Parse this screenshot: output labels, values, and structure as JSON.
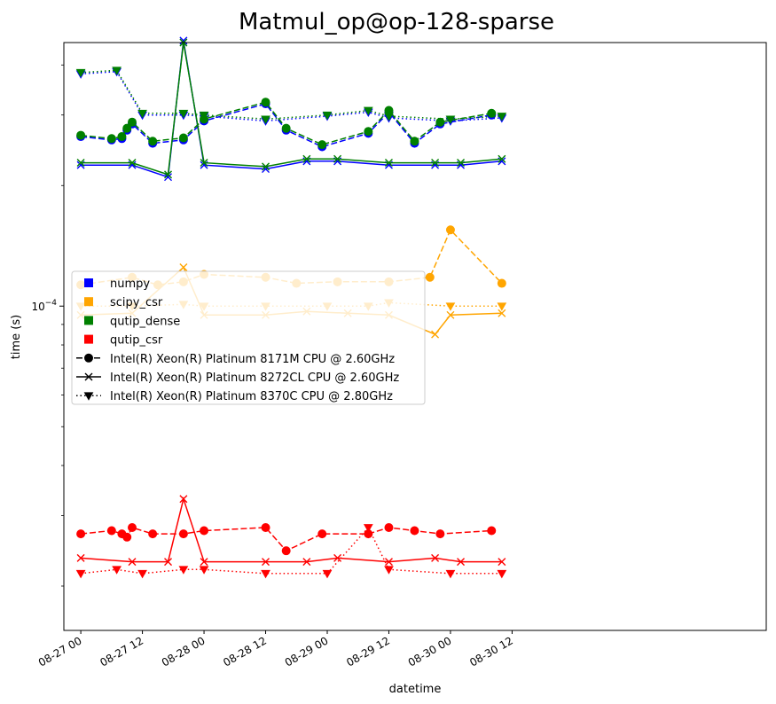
{
  "chart_data": {
    "type": "line",
    "title": "Matmul_op@op-128-sparse",
    "xlabel": "datetime",
    "ylabel": "time (s)",
    "yscale": "log",
    "xlim_hours": [
      -3.3,
      133.5
    ],
    "ylim": [
      1.55e-05,
      0.000455
    ],
    "x_ticks": [
      {
        "hour": 0,
        "label": "08-27 00"
      },
      {
        "hour": 12,
        "label": "08-27 12"
      },
      {
        "hour": 24,
        "label": "08-28 00"
      },
      {
        "hour": 36,
        "label": "08-28 12"
      },
      {
        "hour": 48,
        "label": "08-29 00"
      },
      {
        "hour": 60,
        "label": "08-29 12"
      },
      {
        "hour": 72,
        "label": "08-30 00"
      },
      {
        "hour": 84,
        "label": "08-30 12"
      }
    ],
    "y_tick_major": {
      "value": 0.0001,
      "base": "10",
      "exponent": "−4"
    },
    "legend": {
      "placement": "center-left",
      "operations": [
        {
          "name": "numpy",
          "color": "#0000ff"
        },
        {
          "name": "scipy_csr",
          "color": "#ffa500"
        },
        {
          "name": "qutip_dense",
          "color": "#008000"
        },
        {
          "name": "qutip_csr",
          "color": "#ff0000"
        }
      ],
      "cpus": [
        {
          "name": "Intel(R) Xeon(R) Platinum 8171M CPU @ 2.60GHz",
          "line": "dashed",
          "marker": "circle"
        },
        {
          "name": "Intel(R) Xeon(R) Platinum 8272CL CPU @ 2.60GHz",
          "line": "solid",
          "marker": "x"
        },
        {
          "name": "Intel(R) Xeon(R) Platinum 8370C CPU @ 2.80GHz",
          "line": "dotted",
          "marker": "triangle-down"
        }
      ]
    },
    "series": [
      {
        "op": "numpy",
        "cpu": 0,
        "color": "#0000ff",
        "x": [
          0,
          6,
          8,
          9,
          10,
          14,
          20,
          24,
          36,
          40,
          47,
          56,
          60,
          65,
          70,
          80
        ],
        "y": [
          0.000265,
          0.00026,
          0.000262,
          0.000275,
          0.000285,
          0.000255,
          0.00026,
          0.00029,
          0.00032,
          0.000275,
          0.00025,
          0.00027,
          0.000305,
          0.000255,
          0.000285,
          0.0003
        ]
      },
      {
        "op": "numpy",
        "cpu": 1,
        "color": "#0000ff",
        "x": [
          0,
          10,
          17,
          20,
          24,
          36,
          44,
          50,
          60,
          69,
          74,
          82
        ],
        "y": [
          0.000225,
          0.000225,
          0.00021,
          0.00046,
          0.000225,
          0.00022,
          0.00023,
          0.00023,
          0.000225,
          0.000225,
          0.000225,
          0.00023
        ]
      },
      {
        "op": "numpy",
        "cpu": 2,
        "color": "#0000ff",
        "x": [
          0,
          7,
          12,
          20,
          24,
          36,
          48,
          56,
          60,
          72,
          82
        ],
        "y": [
          0.00038,
          0.000385,
          0.0003,
          0.0003,
          0.000298,
          0.00029,
          0.000298,
          0.000305,
          0.000295,
          0.00029,
          0.000295
        ]
      },
      {
        "op": "scipy_csr",
        "cpu": 0,
        "color": "#ffa500",
        "x": [
          0,
          10,
          15,
          20,
          24,
          36,
          42,
          50,
          60,
          68,
          72,
          82
        ],
        "y": [
          0.000113,
          0.000118,
          0.000113,
          0.000115,
          0.00012,
          0.000118,
          0.000114,
          0.000115,
          0.000115,
          0.000118,
          0.000155,
          0.000114
        ]
      },
      {
        "op": "scipy_csr",
        "cpu": 1,
        "color": "#ffa500",
        "x": [
          0,
          10,
          20,
          24,
          36,
          44,
          52,
          60,
          69,
          72,
          82
        ],
        "y": [
          9.5e-05,
          9.6e-05,
          0.000125,
          9.5e-05,
          9.5e-05,
          9.7e-05,
          9.6e-05,
          9.5e-05,
          8.5e-05,
          9.5e-05,
          9.6e-05
        ]
      },
      {
        "op": "scipy_csr",
        "cpu": 2,
        "color": "#ffa500",
        "x": [
          0,
          10,
          20,
          24,
          36,
          48,
          56,
          60,
          72,
          82
        ],
        "y": [
          0.0001,
          0.0001,
          0.000101,
          0.0001,
          0.0001,
          0.0001,
          0.0001,
          0.000102,
          0.0001,
          0.0001
        ]
      },
      {
        "op": "qutip_dense",
        "cpu": 0,
        "color": "#008000",
        "x": [
          0,
          6,
          8,
          9,
          10,
          14,
          20,
          24,
          36,
          40,
          47,
          56,
          60,
          65,
          70,
          80
        ],
        "y": [
          0.000267,
          0.000262,
          0.000265,
          0.000278,
          0.000288,
          0.000258,
          0.000263,
          0.000293,
          0.000323,
          0.000278,
          0.000253,
          0.000273,
          0.000308,
          0.000258,
          0.000288,
          0.000303
        ]
      },
      {
        "op": "qutip_dense",
        "cpu": 1,
        "color": "#008000",
        "x": [
          0,
          10,
          17,
          20,
          24,
          36,
          44,
          50,
          60,
          69,
          74,
          82
        ],
        "y": [
          0.000228,
          0.000228,
          0.000213,
          0.000455,
          0.000228,
          0.000223,
          0.000233,
          0.000233,
          0.000228,
          0.000228,
          0.000228,
          0.000233
        ]
      },
      {
        "op": "qutip_dense",
        "cpu": 2,
        "color": "#008000",
        "x": [
          0,
          7,
          12,
          20,
          24,
          36,
          48,
          56,
          60,
          72,
          82
        ],
        "y": [
          0.000383,
          0.000388,
          0.000303,
          0.000303,
          0.0003,
          0.000293,
          0.0003,
          0.000308,
          0.000298,
          0.000293,
          0.000298
        ]
      },
      {
        "op": "qutip_csr",
        "cpu": 0,
        "color": "#ff0000",
        "x": [
          0,
          6,
          8,
          9,
          10,
          14,
          20,
          24,
          36,
          40,
          47,
          56,
          60,
          65,
          70,
          80
        ],
        "y": [
          2.7e-05,
          2.75e-05,
          2.7e-05,
          2.65e-05,
          2.8e-05,
          2.7e-05,
          2.7e-05,
          2.75e-05,
          2.8e-05,
          2.45e-05,
          2.7e-05,
          2.7e-05,
          2.8e-05,
          2.75e-05,
          2.7e-05,
          2.75e-05
        ]
      },
      {
        "op": "qutip_csr",
        "cpu": 1,
        "color": "#ff0000",
        "x": [
          0,
          10,
          17,
          20,
          24,
          36,
          44,
          50,
          60,
          69,
          74,
          82
        ],
        "y": [
          2.35e-05,
          2.3e-05,
          2.3e-05,
          3.3e-05,
          2.3e-05,
          2.3e-05,
          2.3e-05,
          2.35e-05,
          2.3e-05,
          2.35e-05,
          2.3e-05,
          2.3e-05
        ]
      },
      {
        "op": "qutip_csr",
        "cpu": 2,
        "color": "#ff0000",
        "x": [
          0,
          7,
          12,
          20,
          24,
          36,
          48,
          56,
          60,
          72,
          82
        ],
        "y": [
          2.15e-05,
          2.2e-05,
          2.15e-05,
          2.2e-05,
          2.2e-05,
          2.15e-05,
          2.15e-05,
          2.8e-05,
          2.2e-05,
          2.15e-05,
          2.15e-05
        ]
      }
    ]
  }
}
